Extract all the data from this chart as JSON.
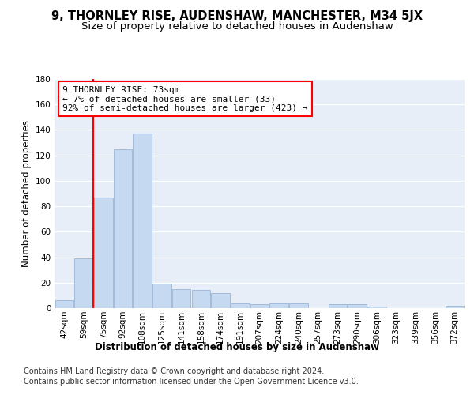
{
  "title": "9, THORNLEY RISE, AUDENSHAW, MANCHESTER, M34 5JX",
  "subtitle": "Size of property relative to detached houses in Audenshaw",
  "xlabel": "Distribution of detached houses by size in Audenshaw",
  "ylabel": "Number of detached properties",
  "categories": [
    "42sqm",
    "59sqm",
    "75sqm",
    "92sqm",
    "108sqm",
    "125sqm",
    "141sqm",
    "158sqm",
    "174sqm",
    "191sqm",
    "207sqm",
    "224sqm",
    "240sqm",
    "257sqm",
    "273sqm",
    "290sqm",
    "306sqm",
    "323sqm",
    "339sqm",
    "356sqm",
    "372sqm"
  ],
  "values": [
    6,
    39,
    87,
    125,
    137,
    19,
    15,
    14,
    12,
    4,
    3,
    4,
    4,
    0,
    3,
    3,
    1,
    0,
    0,
    0,
    2
  ],
  "bar_color": "#c5d9f0",
  "bar_edge_color": "#9ab5d5",
  "vline_x": 1.5,
  "annotation_text": "9 THORNLEY RISE: 73sqm\n← 7% of detached houses are smaller (33)\n92% of semi-detached houses are larger (423) →",
  "ylim": [
    0,
    180
  ],
  "yticks": [
    0,
    20,
    40,
    60,
    80,
    100,
    120,
    140,
    160,
    180
  ],
  "background_color": "#e8eef7",
  "footer1": "Contains HM Land Registry data © Crown copyright and database right 2024.",
  "footer2": "Contains public sector information licensed under the Open Government Licence v3.0.",
  "title_fontsize": 10.5,
  "subtitle_fontsize": 9.5,
  "axis_label_fontsize": 8.5,
  "tick_fontsize": 7.5,
  "footer_fontsize": 7,
  "annotation_fontsize": 8
}
